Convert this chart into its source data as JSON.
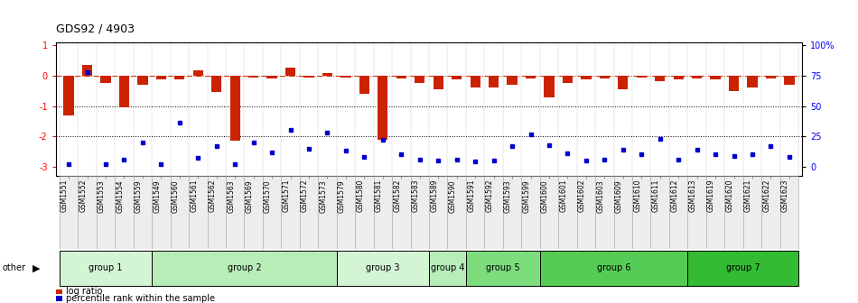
{
  "title": "GDS92 / 4903",
  "samples": [
    "GSM1551",
    "GSM1552",
    "GSM1553",
    "GSM1554",
    "GSM1559",
    "GSM1549",
    "GSM1560",
    "GSM1561",
    "GSM1562",
    "GSM1563",
    "GSM1569",
    "GSM1570",
    "GSM1571",
    "GSM1572",
    "GSM1573",
    "GSM1579",
    "GSM1580",
    "GSM1581",
    "GSM1582",
    "GSM1583",
    "GSM1589",
    "GSM1590",
    "GSM1591",
    "GSM1592",
    "GSM1593",
    "GSM1599",
    "GSM1600",
    "GSM1601",
    "GSM1602",
    "GSM1603",
    "GSM1609",
    "GSM1610",
    "GSM1611",
    "GSM1612",
    "GSM1613",
    "GSM1619",
    "GSM1620",
    "GSM1621",
    "GSM1622",
    "GSM1623"
  ],
  "log_ratio": [
    -1.3,
    0.35,
    -0.25,
    -1.05,
    -0.3,
    -0.12,
    -0.12,
    0.18,
    -0.55,
    -2.15,
    -0.05,
    -0.08,
    0.28,
    -0.05,
    0.08,
    -0.05,
    -0.6,
    -2.1,
    -0.08,
    -0.25,
    -0.45,
    -0.12,
    -0.4,
    -0.4,
    -0.3,
    -0.08,
    -0.7,
    -0.25,
    -0.12,
    -0.08,
    -0.45,
    -0.05,
    -0.18,
    -0.12,
    -0.08,
    -0.12,
    -0.5,
    -0.4,
    -0.08,
    -0.3
  ],
  "percentile_pct": [
    2,
    78,
    2,
    6,
    20,
    2,
    36,
    7,
    17,
    2,
    20,
    12,
    30,
    15,
    28,
    13,
    8,
    22,
    10,
    6,
    5,
    6,
    4,
    5,
    17,
    27,
    18,
    11,
    5,
    6,
    14,
    10,
    23,
    6,
    14,
    10,
    9,
    10,
    17,
    8
  ],
  "groups": [
    {
      "name": "group 1",
      "start": 0,
      "end": 5,
      "color": "#d4f5d4"
    },
    {
      "name": "group 2",
      "start": 5,
      "end": 15,
      "color": "#b8edb8"
    },
    {
      "name": "group 3",
      "start": 15,
      "end": 20,
      "color": "#d4f5d4"
    },
    {
      "name": "group 4",
      "start": 20,
      "end": 22,
      "color": "#b8edb8"
    },
    {
      "name": "group 5",
      "start": 22,
      "end": 26,
      "color": "#7ddd7d"
    },
    {
      "name": "group 6",
      "start": 26,
      "end": 34,
      "color": "#55cc55"
    },
    {
      "name": "group 7",
      "start": 34,
      "end": 40,
      "color": "#33bb33"
    }
  ],
  "bar_color": "#cc2200",
  "dot_color": "#0000cc",
  "ylim": [
    -3.3,
    1.1
  ],
  "yticks_left": [
    1,
    0,
    -1,
    -2,
    -3
  ],
  "yticks_right_pct": [
    100,
    75,
    50,
    25,
    0
  ],
  "hline_y": 0,
  "dotted_lines": [
    -1,
    -2
  ],
  "background_color": "#ffffff",
  "bar_width": 0.55
}
